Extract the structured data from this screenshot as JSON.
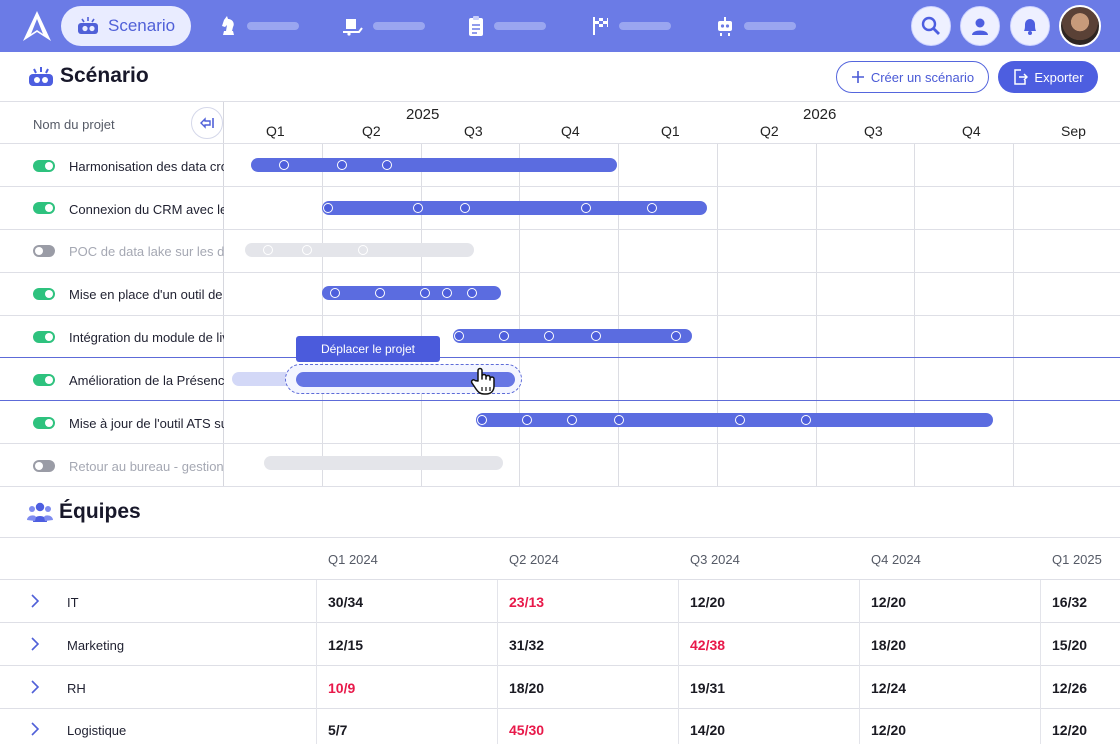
{
  "nav": {
    "active_label": "Scenario",
    "icons": [
      "logo-icon",
      "scenario-icon",
      "chess-icon",
      "delivery-icon",
      "clipboard-icon",
      "flag-icon",
      "robot-icon",
      "search-icon",
      "user-icon",
      "bell-icon"
    ]
  },
  "header": {
    "title": "Scénario",
    "create_button": "Créer un scénario",
    "export_button": "Exporter"
  },
  "gantt": {
    "column_header": "Nom du projet",
    "years": [
      "2025",
      "2026"
    ],
    "quarters": [
      "Q1",
      "Q2",
      "Q3",
      "Q4",
      "Q1",
      "Q2",
      "Q3",
      "Q4",
      "Sep"
    ],
    "projects": [
      {
        "name": "Harmonisation des data cross-canal",
        "active": true
      },
      {
        "name": "Connexion du CRM avec le",
        "active": true
      },
      {
        "name": "POC de data lake sur les données",
        "active": false
      },
      {
        "name": "Mise en place d'un outil de c",
        "active": true
      },
      {
        "name": "Intégration du module de livraison",
        "active": true
      },
      {
        "name": "Amélioration de la Présence",
        "active": true
      },
      {
        "name": "Mise à jour de l'outil ATS sur",
        "active": true
      },
      {
        "name": "Retour au bureau - gestion",
        "active": false
      }
    ],
    "tooltip": "Déplacer le projet"
  },
  "teams": {
    "title": "Équipes",
    "columns": [
      "Q1 2024",
      "Q2 2024",
      "Q3 2024",
      "Q4 2024",
      "Q1 2025"
    ],
    "rows": [
      {
        "name": "IT",
        "values": [
          "30/34",
          "23/13",
          "12/20",
          "12/20",
          "16/32"
        ]
      },
      {
        "name": "Marketing",
        "values": [
          "12/15",
          "31/32",
          "42/38",
          "18/20",
          "15/20"
        ]
      },
      {
        "name": "RH",
        "values": [
          "10/9",
          "18/20",
          "19/31",
          "12/24",
          "12/26"
        ]
      },
      {
        "name": "Logistique",
        "values": [
          "5/7",
          "45/30",
          "14/20",
          "12/20",
          "12/20"
        ]
      }
    ],
    "over_capacity_color": "#e8194a",
    "over_capacity": [
      [
        1
      ],
      [
        2
      ],
      [
        0
      ],
      [
        1
      ]
    ]
  },
  "colors": {
    "nav": "#6b7be6",
    "accent": "#4d5ee0",
    "toggle_on": "#2ec27e"
  }
}
